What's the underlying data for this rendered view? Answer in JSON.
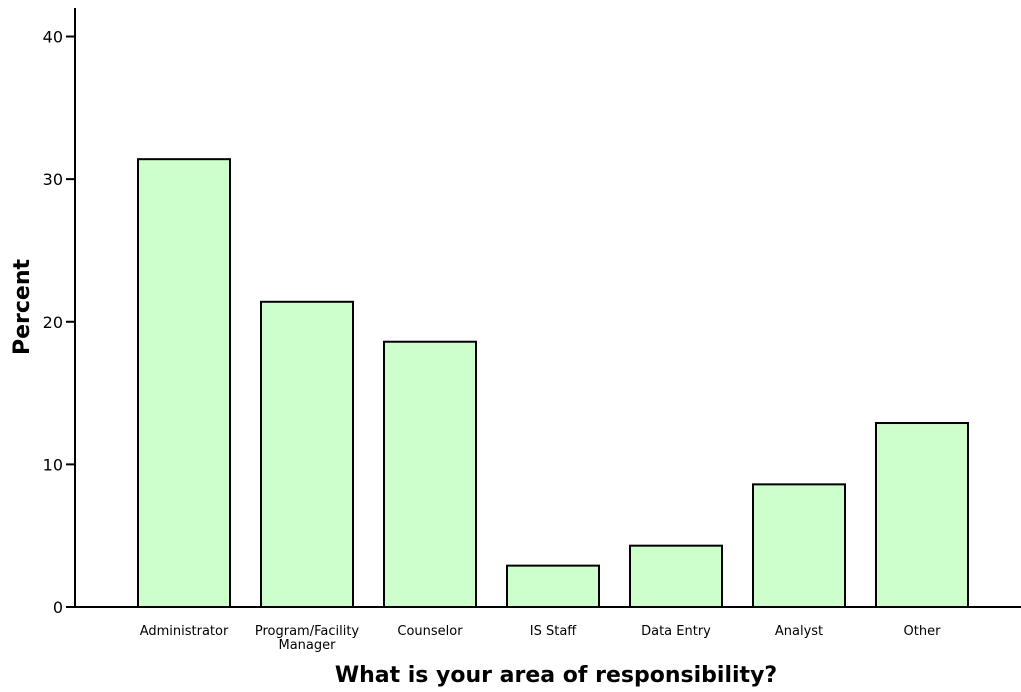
{
  "chart_data": {
    "type": "bar",
    "categories": [
      "Administrator",
      "Program/Facility Manager",
      "Counselor",
      "IS Staff",
      "Data Entry",
      "Analyst",
      "Other"
    ],
    "category_label_lines": [
      [
        "Administrator"
      ],
      [
        "Program/Facility",
        "Manager"
      ],
      [
        "Counselor"
      ],
      [
        "IS Staff"
      ],
      [
        "Data Entry"
      ],
      [
        "Analyst"
      ],
      [
        "Other"
      ]
    ],
    "values": [
      31.4,
      21.4,
      18.6,
      2.9,
      4.3,
      8.6,
      12.9
    ],
    "xlabel": "What is your area of responsibility?",
    "ylabel": "Percent",
    "ylim": [
      0,
      42
    ],
    "yticks": [
      0,
      10,
      20,
      30,
      40
    ],
    "grid": false,
    "legend": "none",
    "bar_color": "#ccffcc",
    "bar_outline_color": "#000000"
  }
}
